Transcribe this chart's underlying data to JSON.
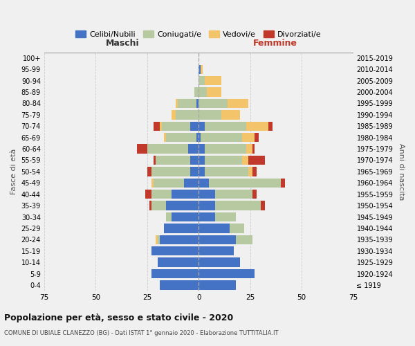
{
  "age_groups": [
    "100+",
    "95-99",
    "90-94",
    "85-89",
    "80-84",
    "75-79",
    "70-74",
    "65-69",
    "60-64",
    "55-59",
    "50-54",
    "45-49",
    "40-44",
    "35-39",
    "30-34",
    "25-29",
    "20-24",
    "15-19",
    "10-14",
    "5-9",
    "0-4"
  ],
  "birth_years": [
    "≤ 1919",
    "1920-1924",
    "1925-1929",
    "1930-1934",
    "1935-1939",
    "1940-1944",
    "1945-1949",
    "1950-1954",
    "1955-1959",
    "1960-1964",
    "1965-1969",
    "1970-1974",
    "1975-1979",
    "1980-1984",
    "1985-1989",
    "1990-1994",
    "1995-1999",
    "2000-2004",
    "2005-2009",
    "2010-2014",
    "2015-2019"
  ],
  "male": {
    "celibi": [
      0,
      0,
      0,
      0,
      1,
      0,
      4,
      1,
      5,
      4,
      4,
      7,
      13,
      16,
      13,
      17,
      19,
      23,
      20,
      23,
      19
    ],
    "coniugati": [
      0,
      0,
      0,
      2,
      9,
      11,
      14,
      15,
      20,
      17,
      19,
      15,
      10,
      7,
      3,
      0,
      1,
      0,
      0,
      0,
      0
    ],
    "vedovi": [
      0,
      0,
      0,
      0,
      1,
      2,
      1,
      1,
      0,
      0,
      0,
      1,
      0,
      0,
      0,
      0,
      1,
      0,
      0,
      0,
      0
    ],
    "divorziati": [
      0,
      0,
      0,
      0,
      0,
      0,
      3,
      0,
      5,
      1,
      2,
      0,
      3,
      1,
      0,
      0,
      0,
      0,
      0,
      0,
      0
    ]
  },
  "female": {
    "nubili": [
      0,
      1,
      0,
      0,
      0,
      0,
      3,
      1,
      3,
      3,
      3,
      5,
      8,
      8,
      8,
      15,
      18,
      17,
      20,
      27,
      18
    ],
    "coniugate": [
      0,
      0,
      3,
      4,
      14,
      11,
      20,
      20,
      20,
      18,
      21,
      35,
      18,
      22,
      10,
      7,
      8,
      0,
      0,
      0,
      0
    ],
    "vedove": [
      0,
      1,
      8,
      7,
      10,
      9,
      11,
      6,
      3,
      3,
      2,
      0,
      0,
      0,
      0,
      0,
      0,
      0,
      0,
      0,
      0
    ],
    "divorziate": [
      0,
      0,
      0,
      0,
      0,
      0,
      2,
      2,
      1,
      8,
      2,
      2,
      2,
      2,
      0,
      0,
      0,
      0,
      0,
      0,
      0
    ]
  },
  "color_celibi": "#4472c4",
  "color_coniugati": "#b7c9a0",
  "color_vedovi": "#f4c46a",
  "color_divorziati": "#c0392b",
  "xlim": 75,
  "title": "Popolazione per età, sesso e stato civile - 2020",
  "subtitle": "COMUNE DI UBIALE CLANEZZO (BG) - Dati ISTAT 1° gennaio 2020 - Elaborazione TUTTITALIA.IT",
  "ylabel": "Fasce di età",
  "ylabel_right": "Anni di nascita",
  "xlabel_maschi": "Maschi",
  "xlabel_femmine": "Femmine",
  "legend_labels": [
    "Celibi/Nubili",
    "Coniugati/e",
    "Vedovi/e",
    "Divorziati/e"
  ],
  "bg_color": "#f0f0f0"
}
